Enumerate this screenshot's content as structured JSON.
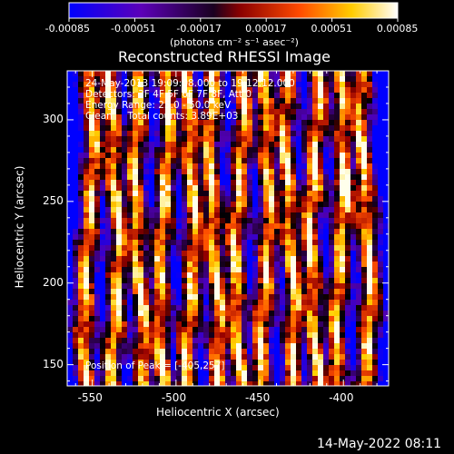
{
  "colorbar": {
    "tick_labels": [
      "-0.00085",
      "-0.00051",
      "-0.00017",
      "0.00017",
      "0.00051",
      "0.00085"
    ],
    "tick_values": [
      -0.00085,
      -0.00051,
      -0.00017,
      0.00017,
      0.00051,
      0.00085
    ],
    "unit_label": "(photons cm⁻² s⁻¹ asec⁻²)"
  },
  "title": "Reconstructed RHESSI Image",
  "info": {
    "line1": "24-May-2013 19:09:08.000 to 19:12:12.000",
    "line2": "Detectors: 3F 4F 5F 6F 7F 8F, Att 0",
    "line3": "Energy Range: 25.0 - 50.0 keV",
    "line4": "Clean     Total counts: 3.89E+03",
    "peak": "Position of Peak = [-405,257]"
  },
  "axes": {
    "xlabel": "Heliocentric X (arcsec)",
    "ylabel": "Heliocentric Y (arcsec)",
    "xlim": [
      -565,
      -373
    ],
    "ylim": [
      137,
      330
    ],
    "xticks": [
      -550,
      -500,
      -450,
      -400
    ],
    "yticks": [
      150,
      200,
      250,
      300
    ]
  },
  "footer_timestamp": "14-May-2022 08:11",
  "image": {
    "description_type": "heatmap",
    "colormap": [
      "#0000ff",
      "#5b00a8",
      "#000000",
      "#b00000",
      "#ff6000",
      "#ffff00",
      "#ffffff"
    ],
    "stripe_x": [
      -552,
      -537,
      -522,
      -507,
      -492,
      -477,
      -462,
      -447,
      -432,
      -417,
      -402,
      -387
    ],
    "peak": [
      -405,
      257
    ]
  }
}
